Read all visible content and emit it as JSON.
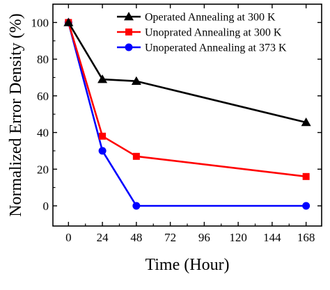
{
  "chart_data": {
    "type": "line",
    "title": "",
    "xlabel": "Time (Hour)",
    "ylabel": "Normalized Error Density (%)",
    "x_ticks": [
      0,
      24,
      48,
      72,
      96,
      120,
      144,
      168
    ],
    "y_ticks": [
      0,
      20,
      40,
      60,
      80,
      100
    ],
    "xlim": [
      -11,
      179
    ],
    "ylim": [
      -11,
      110
    ],
    "grid": false,
    "legend_position": "top-right",
    "series": [
      {
        "name": "Operated Annealing at 300 K",
        "color": "#000000",
        "marker": "triangle",
        "x": [
          0,
          24,
          48,
          168
        ],
        "y": [
          100,
          69,
          68,
          45.5
        ]
      },
      {
        "name": "Unoprated Annealing at 300 K",
        "color": "#ff0000",
        "marker": "square",
        "x": [
          0,
          24,
          48,
          168
        ],
        "y": [
          100,
          38,
          27,
          16
        ]
      },
      {
        "name": "Unoperated Annealing at 373 K",
        "color": "#0000ff",
        "marker": "circle",
        "x": [
          0,
          24,
          48,
          168
        ],
        "y": [
          100,
          30,
          0,
          0
        ]
      }
    ]
  }
}
